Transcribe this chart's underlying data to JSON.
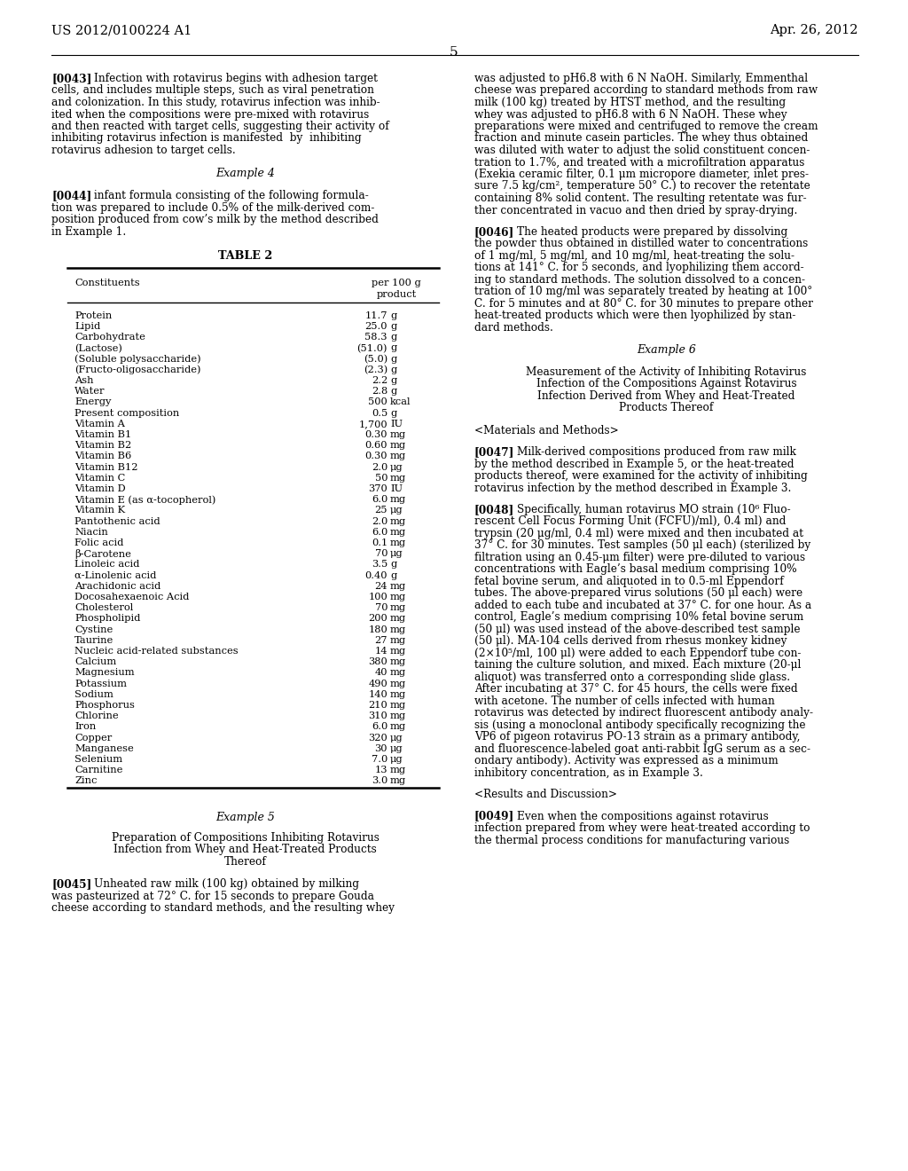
{
  "background_color": "#ffffff",
  "header_left": "US 2012/0100224 A1",
  "header_right": "Apr. 26, 2012",
  "page_number": "5",
  "table_rows": [
    [
      "Protein",
      "11.7",
      "g"
    ],
    [
      "Lipid",
      "25.0",
      "g"
    ],
    [
      "Carbohydrate",
      "58.3",
      "g"
    ],
    [
      "(Lactose)",
      "(51.0)",
      "g"
    ],
    [
      "(Soluble polysaccharide)",
      "(5.0)",
      "g"
    ],
    [
      "(Fructo-oligosaccharide)",
      "(2.3)",
      "g"
    ],
    [
      "Ash",
      "2.2",
      "g"
    ],
    [
      "Water",
      "2.8",
      "g"
    ],
    [
      "Energy",
      "500",
      "kcal"
    ],
    [
      "Present composition",
      "0.5",
      "g"
    ],
    [
      "Vitamin A",
      "1,700",
      "IU"
    ],
    [
      "Vitamin B1",
      "0.30",
      "mg"
    ],
    [
      "Vitamin B2",
      "0.60",
      "mg"
    ],
    [
      "Vitamin B6",
      "0.30",
      "mg"
    ],
    [
      "Vitamin B12",
      "2.0",
      "μg"
    ],
    [
      "Vitamin C",
      "50",
      "mg"
    ],
    [
      "Vitamin D",
      "370",
      "IU"
    ],
    [
      "Vitamin E (as α-tocopherol)",
      "6.0",
      "mg"
    ],
    [
      "Vitamin K",
      "25",
      "μg"
    ],
    [
      "Pantothenic acid",
      "2.0",
      "mg"
    ],
    [
      "Niacin",
      "6.0",
      "mg"
    ],
    [
      "Folic acid",
      "0.1",
      "mg"
    ],
    [
      "β-Carotene",
      "70",
      "μg"
    ],
    [
      "Linoleic acid",
      "3.5",
      "g"
    ],
    [
      "α-Linolenic acid",
      "0.40",
      "g"
    ],
    [
      "Arachidonic acid",
      "24",
      "mg"
    ],
    [
      "Docosahexaenoic Acid",
      "100",
      "mg"
    ],
    [
      "Cholesterol",
      "70",
      "mg"
    ],
    [
      "Phospholipid",
      "200",
      "mg"
    ],
    [
      "Cystine",
      "180",
      "mg"
    ],
    [
      "Taurine",
      "27",
      "mg"
    ],
    [
      "Nucleic acid-related substances",
      "14",
      "mg"
    ],
    [
      "Calcium",
      "380",
      "mg"
    ],
    [
      "Magnesium",
      "40",
      "mg"
    ],
    [
      "Potassium",
      "490",
      "mg"
    ],
    [
      "Sodium",
      "140",
      "mg"
    ],
    [
      "Phosphorus",
      "210",
      "mg"
    ],
    [
      "Chlorine",
      "310",
      "mg"
    ],
    [
      "Iron",
      "6.0",
      "mg"
    ],
    [
      "Copper",
      "320",
      "μg"
    ],
    [
      "Manganese",
      "30",
      "μg"
    ],
    [
      "Selenium",
      "7.0",
      "μg"
    ],
    [
      "Carnitine",
      "13",
      "mg"
    ],
    [
      "Zinc",
      "3.0",
      "mg"
    ]
  ]
}
